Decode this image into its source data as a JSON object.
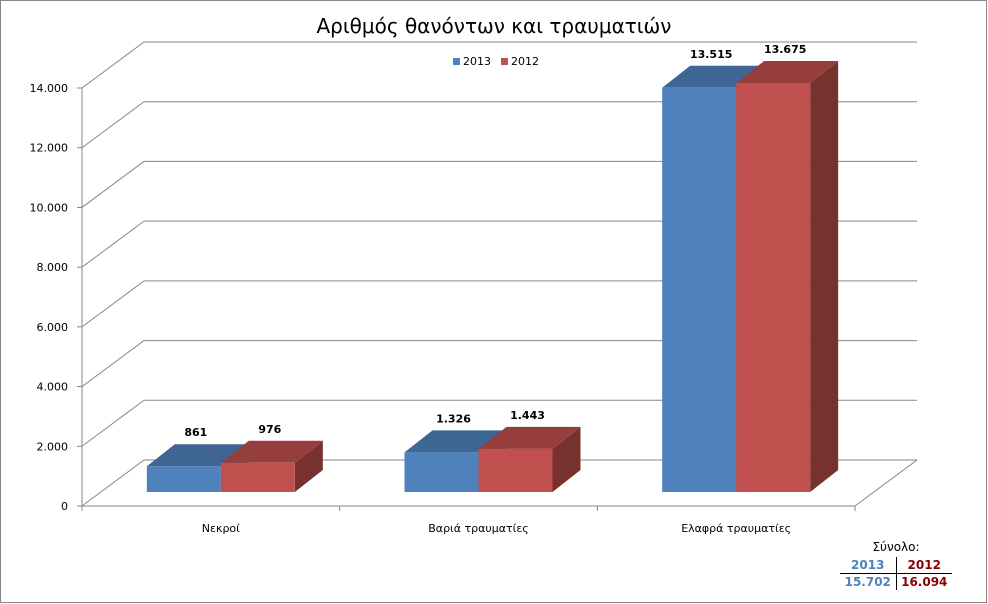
{
  "chart_data": {
    "type": "bar",
    "title": "Αριθμός θανόντων και τραυματιών",
    "categories": [
      "Νεκροί",
      "Βαριά τραυματίες",
      "Ελαφρά τραυματίες"
    ],
    "series": [
      {
        "name": "2013",
        "values": [
          861,
          1326,
          13515
        ],
        "labels": [
          "861",
          "1.326",
          "13.515"
        ],
        "color": "#4f81bd"
      },
      {
        "name": "2012",
        "values": [
          976,
          1443,
          13675
        ],
        "labels": [
          "976",
          "1.443",
          "13.675"
        ],
        "color": "#c0504d"
      }
    ],
    "ylim": [
      0,
      14000
    ],
    "yticks": [
      0,
      2000,
      4000,
      6000,
      8000,
      10000,
      12000,
      14000
    ],
    "ytick_labels": [
      "0",
      "2.000",
      "4.000",
      "6.000",
      "8.000",
      "10.000",
      "12.000",
      "14.000"
    ],
    "legend_position": "top-center",
    "grid": true
  },
  "totals": {
    "label": "Σύνολο:",
    "headers": [
      "2013",
      "2012"
    ],
    "values": [
      "15.702",
      "16.094"
    ]
  }
}
